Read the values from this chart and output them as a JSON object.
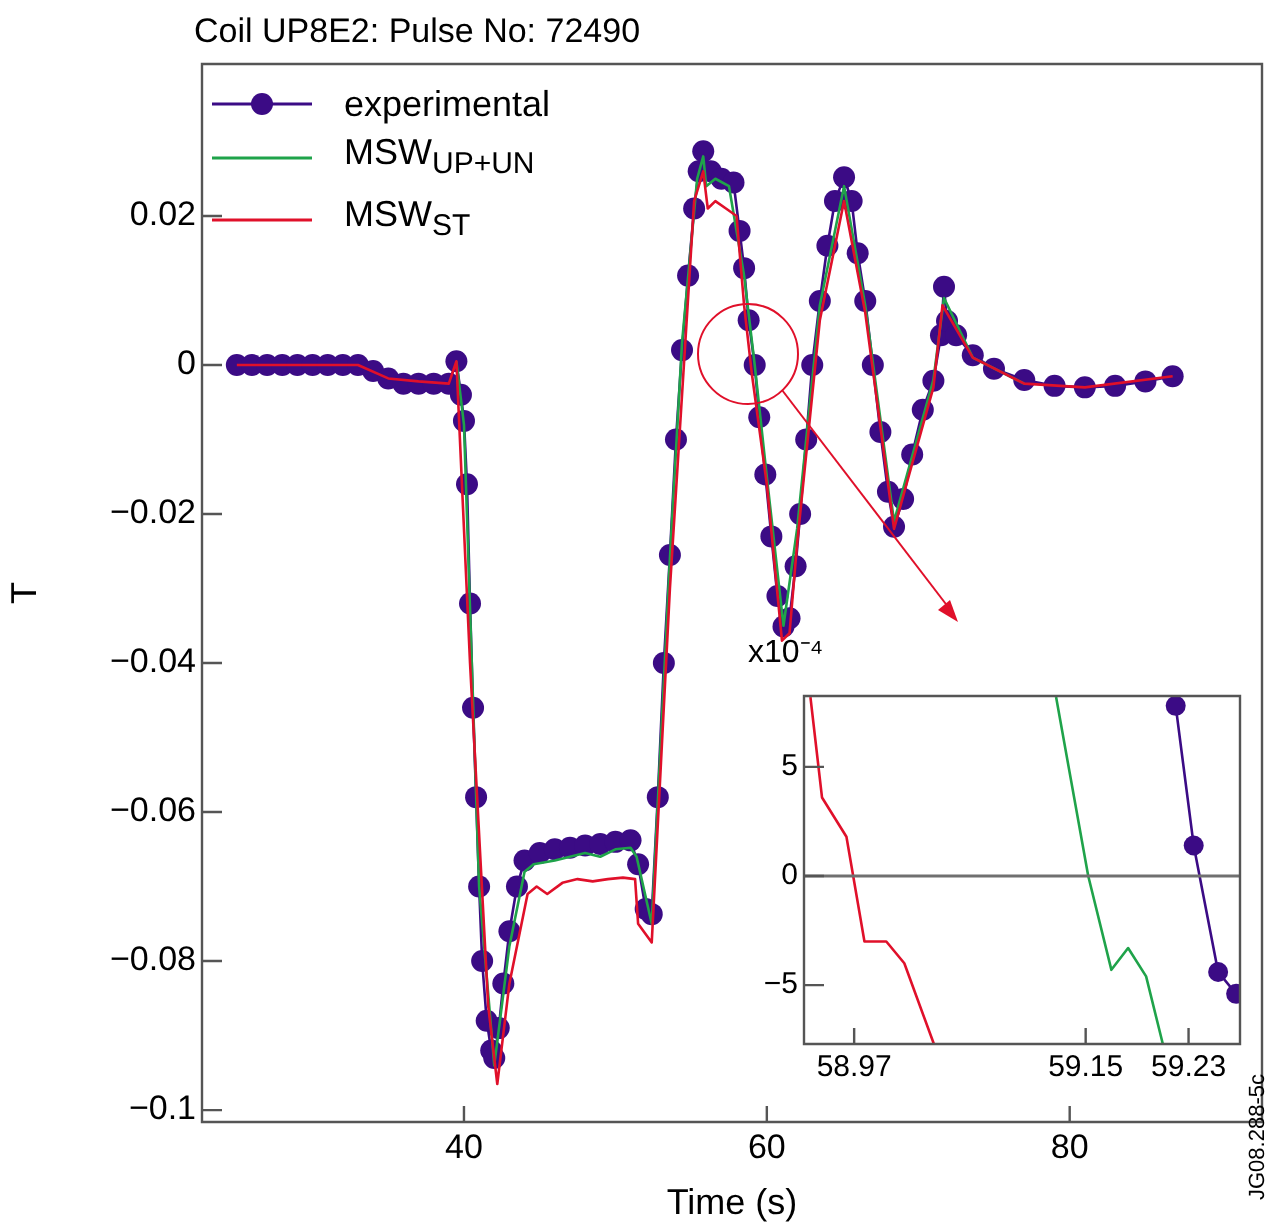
{
  "chart_data": [
    {
      "type": "line",
      "title": "Coil UP8E2: Pulse No: 72490",
      "xlabel": "Time (s)",
      "ylabel": "T",
      "xlim": [
        22.7,
        92.7
      ],
      "ylim": [
        -0.1016,
        0.0404
      ],
      "xticks": [
        40,
        60,
        80
      ],
      "yticks": [
        {
          "value": -0.1,
          "label": "−0.1"
        },
        {
          "value": -0.08,
          "label": "−0.08"
        },
        {
          "value": -0.06,
          "label": "−0.06"
        },
        {
          "value": -0.04,
          "label": "−0.04"
        },
        {
          "value": -0.02,
          "label": "−0.02"
        },
        0,
        0.02
      ],
      "grid": false,
      "legend": "top left",
      "annotations": [
        "JG08.288-5c"
      ],
      "series": [
        {
          "name": "experimental",
          "color": "#3b0b85",
          "marker": "circle",
          "x": [
            25,
            26,
            27,
            28,
            29,
            30,
            31,
            32,
            33,
            34,
            35,
            36,
            37,
            38,
            39,
            39.5,
            39.8,
            40,
            40.2,
            40.4,
            40.6,
            40.8,
            41.0,
            41.2,
            41.5,
            41.8,
            42.0,
            42.3,
            42.6,
            43.0,
            43.5,
            44.0,
            45,
            46,
            47,
            48,
            49,
            50,
            51,
            51.5,
            52,
            52.4,
            52.8,
            53.2,
            53.6,
            54.0,
            54.4,
            54.8,
            55.2,
            55.5,
            55.8,
            56.3,
            57.0,
            57.8,
            58.2,
            58.5,
            58.8,
            59.2,
            59.5,
            59.9,
            60.3,
            60.7,
            61.1,
            61.5,
            61.9,
            62.2,
            62.6,
            63.0,
            63.5,
            64.0,
            64.5,
            65.1,
            65.6,
            66.0,
            66.5,
            67.0,
            67.5,
            68.0,
            68.4,
            69.0,
            69.6,
            70.3,
            71.0,
            71.5,
            71.7,
            71.9,
            72.5,
            73.6,
            75,
            77,
            79,
            81,
            83,
            85,
            86.8
          ],
          "values": [
            0,
            0,
            0,
            0,
            0,
            0,
            0,
            0,
            0,
            -0.0008,
            -0.0018,
            -0.0025,
            -0.0025,
            -0.0025,
            -0.0025,
            0.0005,
            -0.004,
            -0.0075,
            -0.016,
            -0.032,
            -0.046,
            -0.058,
            -0.07,
            -0.08,
            -0.088,
            -0.092,
            -0.093,
            -0.089,
            -0.083,
            -0.076,
            -0.07,
            -0.0665,
            -0.0655,
            -0.065,
            -0.0648,
            -0.0645,
            -0.0643,
            -0.064,
            -0.0638,
            -0.067,
            -0.073,
            -0.0737,
            -0.058,
            -0.04,
            -0.0255,
            -0.01,
            0.002,
            0.012,
            0.021,
            0.026,
            0.0287,
            0.026,
            0.025,
            0.0245,
            0.018,
            0.013,
            0.006,
            0,
            -0.007,
            -0.0147,
            -0.023,
            -0.031,
            -0.0351,
            -0.034,
            -0.027,
            -0.02,
            -0.01,
            0,
            0.0086,
            0.016,
            0.022,
            0.0252,
            0.022,
            0.015,
            0.0086,
            0,
            -0.009,
            -0.017,
            -0.0217,
            -0.018,
            -0.012,
            -0.006,
            -0.0021,
            0.004,
            0.0105,
            0.0059,
            0.004,
            0.0013,
            -0.0005,
            -0.002,
            -0.0028,
            -0.003,
            -0.0028,
            -0.0022,
            -0.0015
          ]
        },
        {
          "name": "MSW$_{UP+UN}$",
          "color": "#1fa34a",
          "x": [
            39.5,
            40,
            41,
            42,
            43,
            44,
            44.6,
            46,
            47,
            48,
            49,
            50,
            51,
            51.4,
            52.4,
            53.6,
            54.4,
            55.4,
            55.8,
            56,
            56.6,
            57.5,
            58.5,
            59.2,
            60,
            61.1,
            62,
            63.5,
            65.1,
            66.5,
            68.4,
            71,
            71.7,
            73.6,
            77
          ],
          "values": [
            0.0005,
            -0.008,
            -0.07,
            -0.094,
            -0.078,
            -0.068,
            -0.067,
            -0.0665,
            -0.066,
            -0.0655,
            -0.066,
            -0.065,
            -0.0648,
            -0.066,
            -0.075,
            -0.026,
            0.003,
            0.025,
            0.028,
            0.024,
            0.025,
            0.024,
            0.012,
            0,
            -0.015,
            -0.035,
            -0.022,
            0.008,
            0.024,
            0.008,
            -0.021,
            -0.002,
            0.009,
            0.001,
            -0.0025
          ]
        },
        {
          "name": "MSW$_{ST}$",
          "color": "#e0102a",
          "x": [
            25,
            33,
            35,
            37,
            39,
            39.5,
            40.4,
            41.6,
            42.2,
            43,
            44.2,
            44.8,
            45.5,
            46.5,
            47.5,
            48.5,
            49.5,
            50.5,
            51.3,
            51.5,
            52.4,
            53.6,
            55.2,
            55.8,
            56.1,
            56.6,
            57.3,
            58.0,
            58.5,
            59.0,
            60,
            61.0,
            61.5,
            62,
            63.5,
            65.1,
            66.5,
            68.4,
            71,
            71.6,
            73.6,
            77,
            81,
            86.8
          ],
          "values": [
            0,
            0,
            -0.0018,
            -0.0022,
            -0.0025,
            0.0005,
            -0.04,
            -0.086,
            -0.0965,
            -0.083,
            -0.071,
            -0.07,
            -0.071,
            -0.0695,
            -0.069,
            -0.0693,
            -0.069,
            -0.0688,
            -0.069,
            -0.075,
            -0.0775,
            -0.03,
            0.022,
            0.026,
            0.021,
            0.022,
            0.021,
            0.02,
            0.008,
            -0.001,
            -0.016,
            -0.037,
            -0.036,
            -0.024,
            0.006,
            0.022,
            0.007,
            -0.022,
            -0.003,
            0.008,
            0.001,
            -0.0025,
            -0.003,
            -0.0015
          ]
        }
      ]
    },
    {
      "type": "line",
      "xlim": [
        58.931,
        59.27
      ],
      "ylim": [
        -7.7,
        8.25
      ],
      "xticks": [
        58.97,
        59.15,
        59.23
      ],
      "yticks": [
        {
          "value": -5,
          "label": "−5"
        },
        0,
        5
      ],
      "grid": false,
      "annotations": [
        "x10⁻⁴"
      ],
      "ref_lines": [
        {
          "axis": "y",
          "value": 0,
          "color": "#707070"
        }
      ],
      "series": [
        {
          "color": "#e0102a",
          "x": [
            58.936,
            58.945,
            58.964,
            58.978,
            58.995,
            59.009,
            59.032
          ],
          "values": [
            8.2,
            3.6,
            1.8,
            -3.0,
            -3.0,
            -4.0,
            -7.7
          ]
        },
        {
          "color": "#1fa34a",
          "x": [
            59.127,
            59.152,
            59.17,
            59.183,
            59.197,
            59.21
          ],
          "values": [
            8.2,
            0,
            -4.3,
            -3.3,
            -4.6,
            -7.7
          ]
        },
        {
          "color": "#3b0b85",
          "marker": "circle",
          "x": [
            59.22,
            59.234,
            59.253,
            59.267
          ],
          "values": [
            7.8,
            1.4,
            -4.4,
            -5.4
          ]
        }
      ]
    }
  ]
}
